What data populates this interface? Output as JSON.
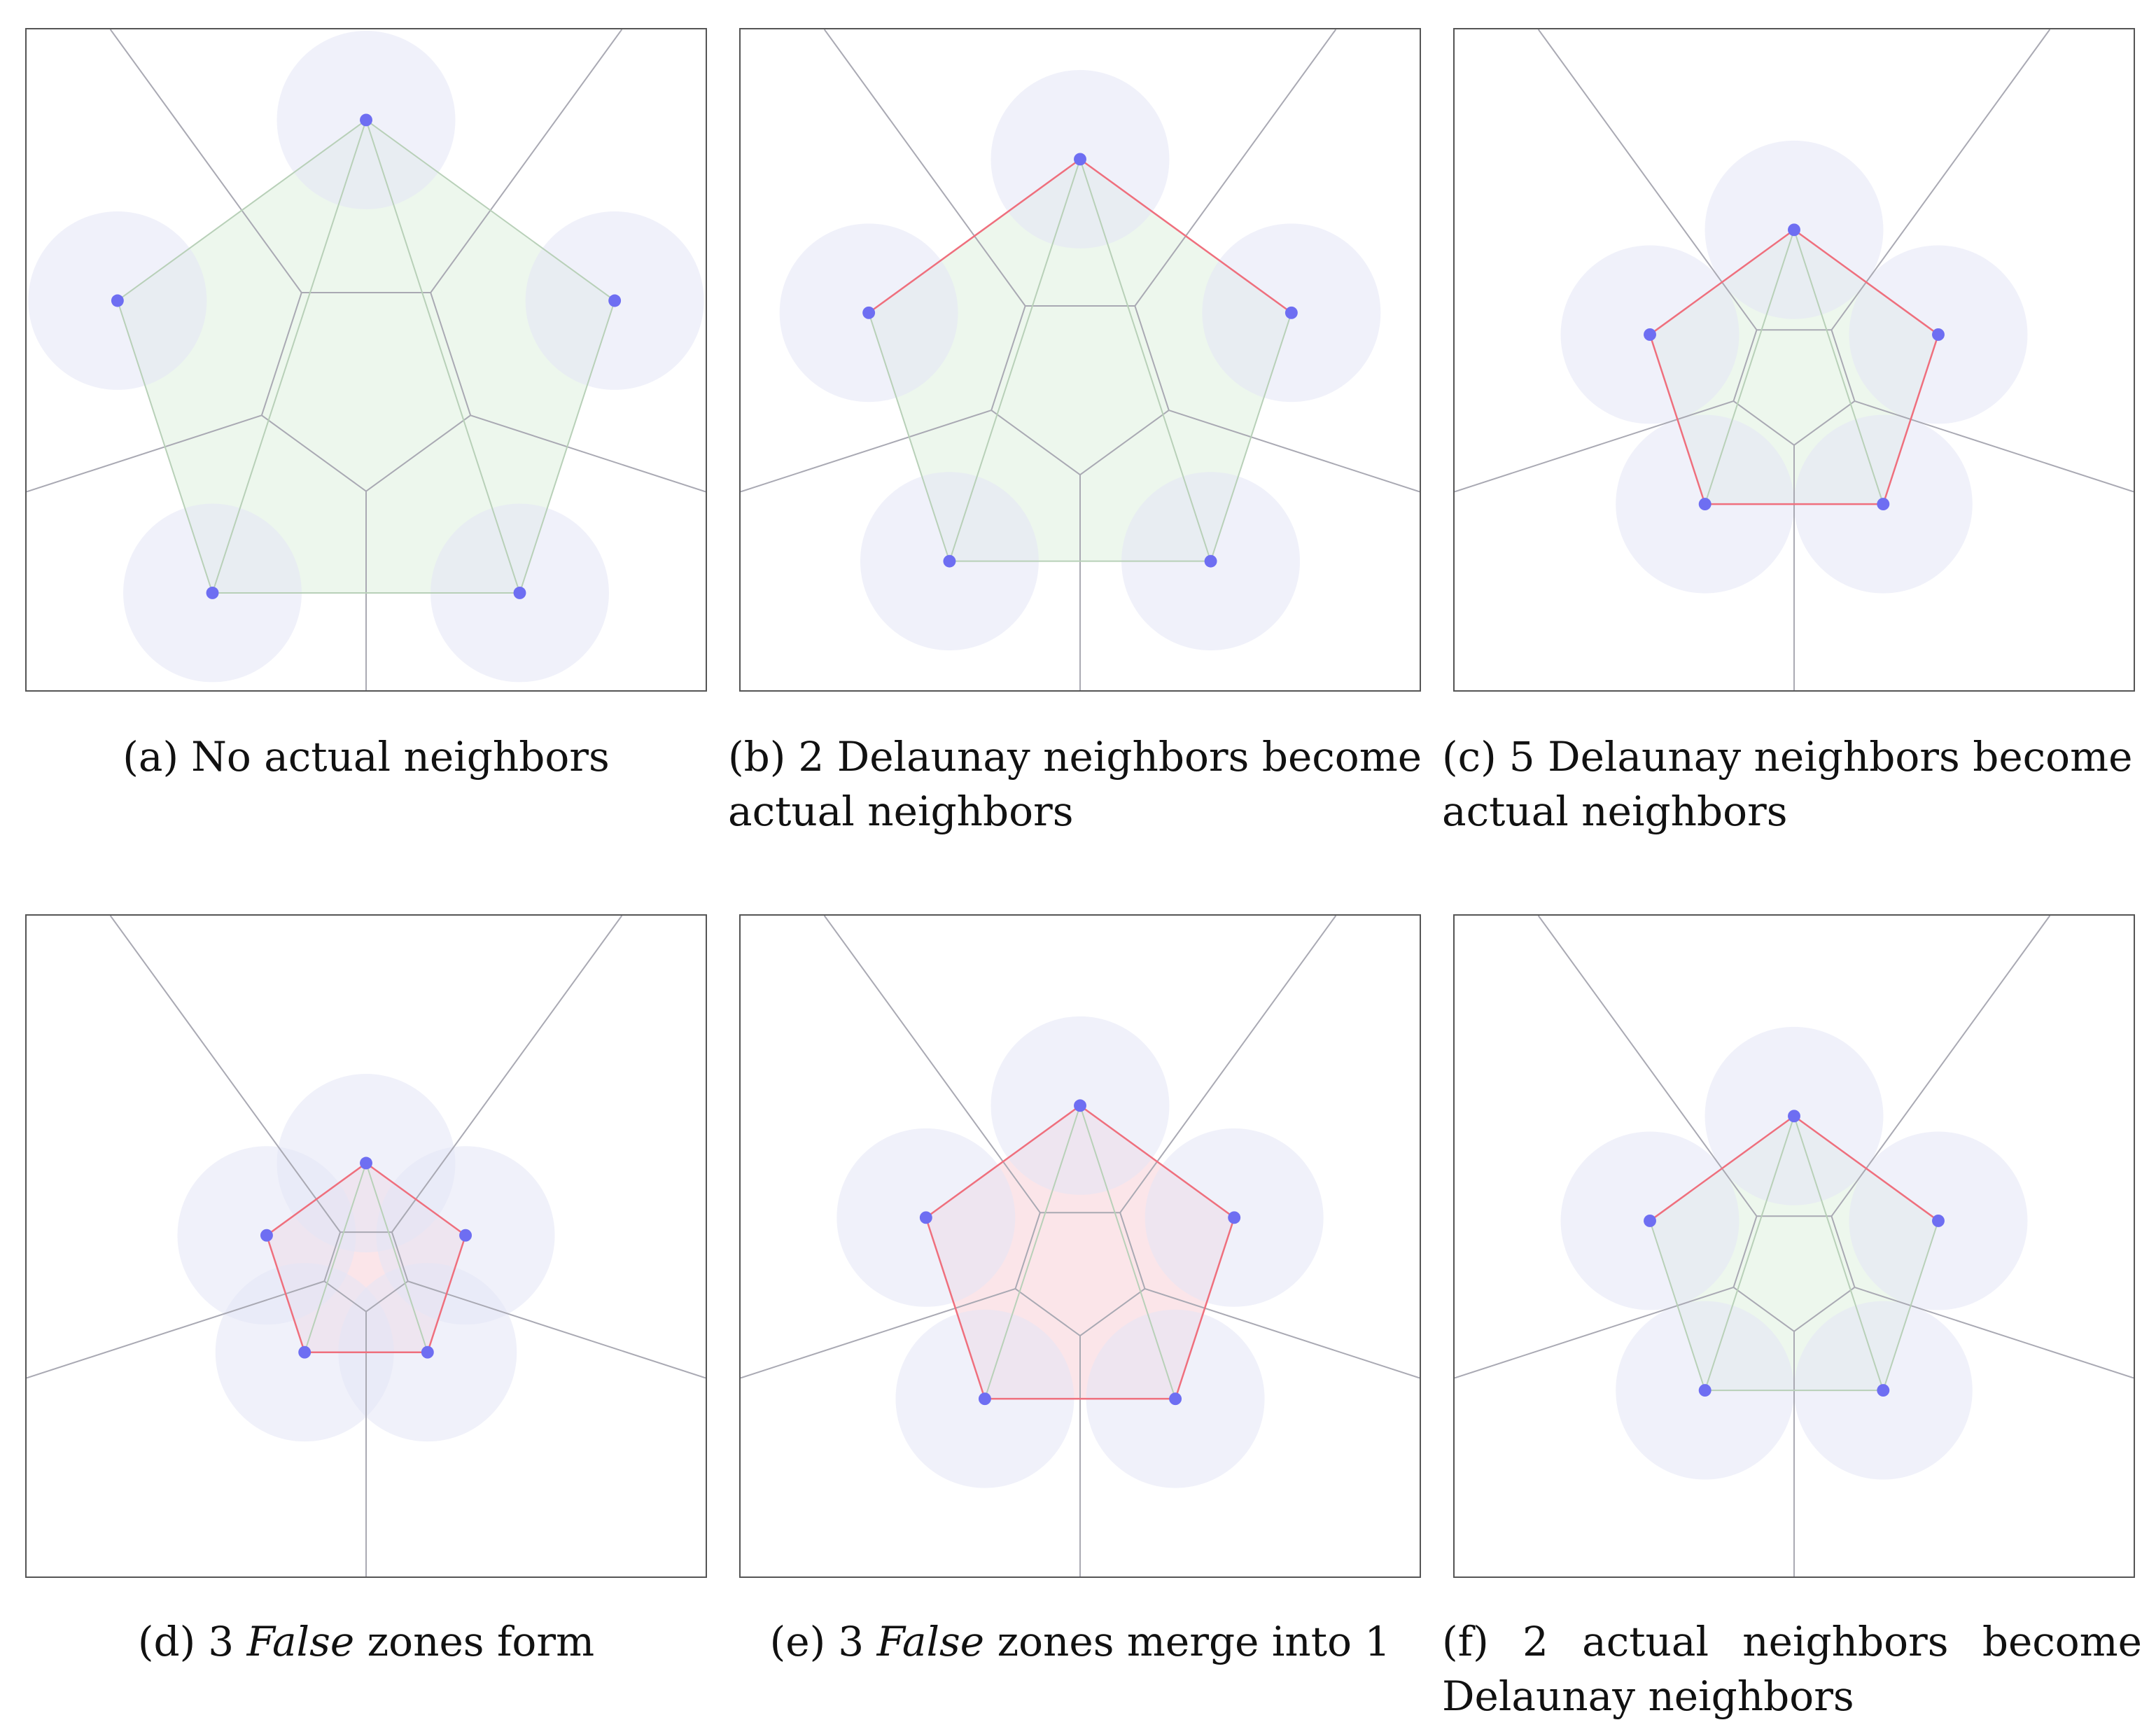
{
  "colors": {
    "site": "#6e6ef2",
    "circle": "#e4e6f6",
    "voronoi": "#a9a9b3",
    "delaunay_actual": "#ef6f7d",
    "delaunay_plain": "#b8d0b8",
    "fill_green": "#dcefdc",
    "fill_pink": "#f7c5cf"
  },
  "panels": [
    {
      "id": "a",
      "label": "(a)",
      "caption": "No actual neighbors",
      "caption_mode": "center",
      "sites": [
        [
          0,
          0.6
        ],
        [
          0.57,
          0.19
        ],
        [
          0.35,
          -0.49
        ],
        [
          -0.35,
          -0.49
        ],
        [
          -0.57,
          0.19
        ]
      ],
      "scale": 1.0,
      "actual_edges": [],
      "fill": "green"
    },
    {
      "id": "b",
      "label": "(b)",
      "caption_line1": "2 Delaunay neighbors become",
      "caption_line2": "actual neighbors",
      "caption_mode": "two-line",
      "scale": 0.85,
      "actual_edges": [
        [
          0,
          1
        ],
        [
          4,
          0
        ]
      ],
      "fill": "green"
    },
    {
      "id": "c",
      "label": "(c)",
      "caption_line1": "5 Delaunay neighbors become",
      "caption_line2": "actual neighbors",
      "caption_mode": "two-line",
      "scale": 0.58,
      "actual_edges": [
        [
          0,
          1
        ],
        [
          1,
          2
        ],
        [
          2,
          3
        ],
        [
          3,
          4
        ],
        [
          4,
          0
        ]
      ],
      "fill": "green"
    },
    {
      "id": "d",
      "label": "(d)",
      "caption_prefix": "3",
      "caption_italic": "False",
      "caption_suffix": "zones form",
      "caption_mode": "italic",
      "scale": 0.4,
      "actual_edges": [
        [
          0,
          1
        ],
        [
          1,
          2
        ],
        [
          2,
          3
        ],
        [
          3,
          4
        ],
        [
          4,
          0
        ]
      ],
      "fill": "pink"
    },
    {
      "id": "e",
      "label": "(e)",
      "caption_prefix": "3",
      "caption_italic": "False",
      "caption_suffix": "zones merge into 1",
      "caption_mode": "italic",
      "scale": 0.62,
      "actual_edges": [
        [
          0,
          1
        ],
        [
          1,
          2
        ],
        [
          2,
          3
        ],
        [
          3,
          4
        ],
        [
          4,
          0
        ]
      ],
      "fill": "pink"
    },
    {
      "id": "f",
      "label": "(f)",
      "caption_words": [
        "(f)",
        "2",
        "actual",
        "neighbors",
        "become"
      ],
      "caption_line2": "Delaunay neighbors",
      "caption_mode": "justified",
      "scale": 0.58,
      "actual_edges": [
        [
          0,
          1
        ],
        [
          4,
          0
        ]
      ],
      "fill": "green"
    }
  ]
}
